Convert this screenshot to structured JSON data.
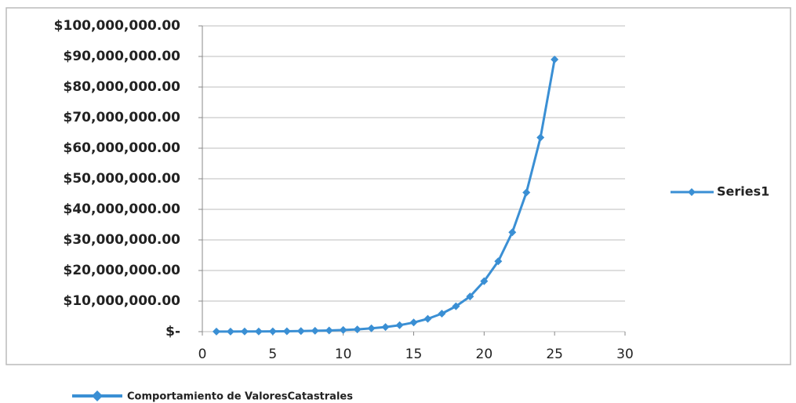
{
  "chart_data": {
    "type": "line",
    "caption": "Comportamiento de ValoresCatastrales",
    "x": [
      1,
      2,
      3,
      4,
      5,
      6,
      7,
      8,
      9,
      10,
      11,
      12,
      13,
      14,
      15,
      16,
      17,
      18,
      19,
      20,
      21,
      22,
      23,
      24,
      25
    ],
    "series": [
      {
        "name": "Series1",
        "color": "#3a8fd4",
        "values": [
          26000,
          36000,
          50000,
          70000,
          100000,
          140000,
          200000,
          280000,
          390000,
          540000,
          750000,
          1100000,
          1500000,
          2100000,
          3000000,
          4200000,
          5900000,
          8300000,
          11500000,
          16500000,
          23000000,
          32500000,
          45500000,
          63500000,
          89000000
        ]
      }
    ],
    "xlim": [
      0,
      30
    ],
    "xticks": [
      0,
      5,
      10,
      15,
      20,
      25,
      30
    ],
    "ylim": [
      0,
      100000000
    ],
    "yticks": [
      {
        "value": 0,
        "label": "$-"
      },
      {
        "value": 10000000,
        "label": "$10,000,000.00"
      },
      {
        "value": 20000000,
        "label": "$20,000,000.00"
      },
      {
        "value": 30000000,
        "label": "$30,000,000.00"
      },
      {
        "value": 40000000,
        "label": "$40,000,000.00"
      },
      {
        "value": 50000000,
        "label": "$50,000,000.00"
      },
      {
        "value": 60000000,
        "label": "$60,000,000.00"
      },
      {
        "value": 70000000,
        "label": "$70,000,000.00"
      },
      {
        "value": 80000000,
        "label": "$80,000,000.00"
      },
      {
        "value": 90000000,
        "label": "$90,000,000.00"
      },
      {
        "value": 100000000,
        "label": "$100,000,000.00"
      }
    ],
    "grid": true,
    "legend": "right"
  }
}
